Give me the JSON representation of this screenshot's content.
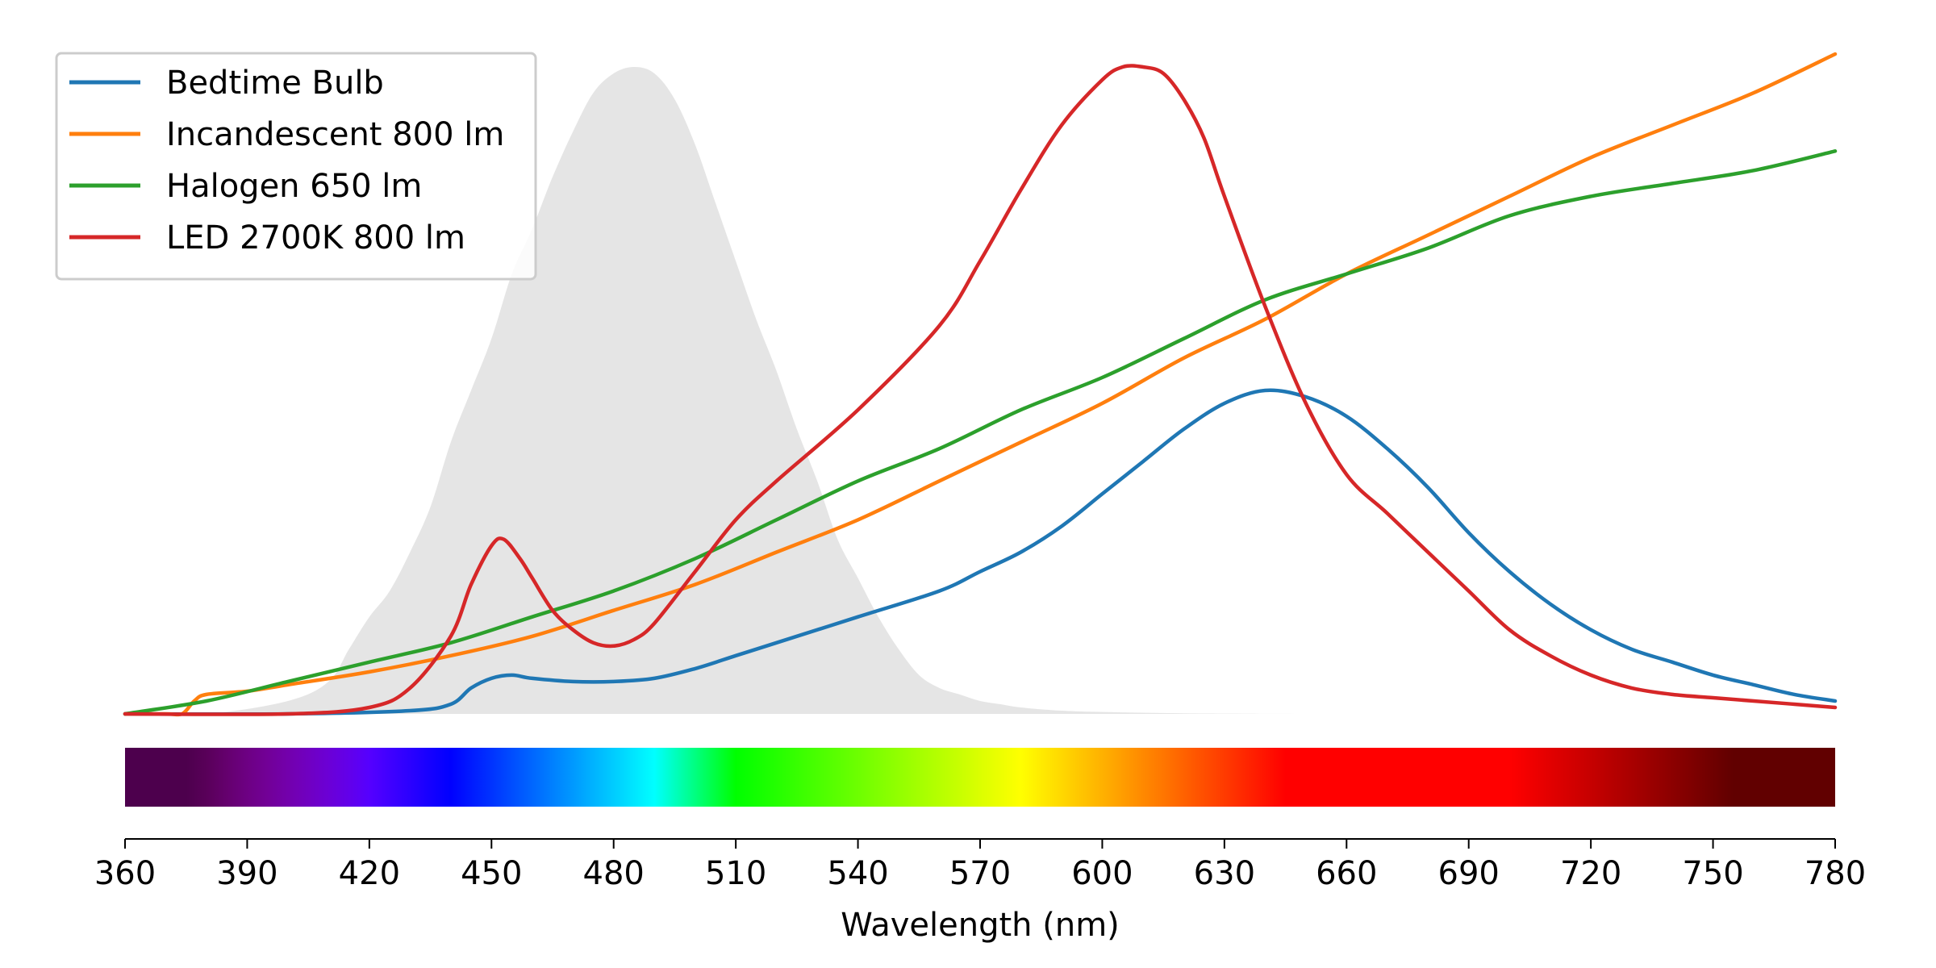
{
  "chart_data": {
    "type": "line",
    "xlabel": "Wavelength (nm)",
    "ylabel": "",
    "xlim": [
      360,
      780
    ],
    "x_ticks": [
      360,
      390,
      420,
      450,
      480,
      510,
      540,
      570,
      600,
      630,
      660,
      690,
      720,
      750,
      780
    ],
    "y_axis_visible": false,
    "grid": false,
    "legend_position": "top-left",
    "background_band": {
      "name": "",
      "color": "#e5e5e5",
      "x": [
        360,
        380,
        400,
        410,
        415,
        420,
        425,
        430,
        435,
        440,
        445,
        450,
        455,
        460,
        465,
        470,
        475,
        480,
        485,
        490,
        495,
        500,
        505,
        510,
        515,
        520,
        525,
        530,
        535,
        540,
        545,
        550,
        555,
        560,
        565,
        570,
        575,
        580,
        590,
        600,
        620,
        650,
        700,
        780
      ],
      "y": [
        0,
        0,
        0.02,
        0.05,
        0.1,
        0.15,
        0.19,
        0.25,
        0.32,
        0.42,
        0.5,
        0.58,
        0.68,
        0.75,
        0.83,
        0.9,
        0.96,
        0.99,
        1.0,
        0.99,
        0.95,
        0.88,
        0.79,
        0.7,
        0.61,
        0.53,
        0.44,
        0.36,
        0.27,
        0.21,
        0.15,
        0.1,
        0.06,
        0.04,
        0.03,
        0.02,
        0.015,
        0.01,
        0.005,
        0.003,
        0.001,
        0,
        0,
        0
      ]
    },
    "spectrum_bar": true,
    "series": [
      {
        "name": "Bedtime Bulb",
        "color": "#1f77b4",
        "x": [
          360,
          400,
          430,
          440,
          445,
          450,
          455,
          460,
          470,
          480,
          490,
          500,
          510,
          520,
          540,
          560,
          570,
          580,
          590,
          600,
          610,
          620,
          630,
          640,
          650,
          660,
          670,
          680,
          690,
          700,
          710,
          720,
          730,
          740,
          750,
          760,
          770,
          780
        ],
        "y": [
          0,
          0,
          0.005,
          0.015,
          0.04,
          0.055,
          0.06,
          0.055,
          0.05,
          0.05,
          0.055,
          0.07,
          0.09,
          0.11,
          0.15,
          0.19,
          0.22,
          0.25,
          0.29,
          0.34,
          0.39,
          0.44,
          0.48,
          0.5,
          0.49,
          0.46,
          0.41,
          0.35,
          0.28,
          0.22,
          0.17,
          0.13,
          0.1,
          0.08,
          0.06,
          0.045,
          0.03,
          0.02
        ]
      },
      {
        "name": "Incandescent 800 lm",
        "color": "#ff7f0e",
        "x": [
          360,
          370,
          374,
          377,
          380,
          390,
          400,
          420,
          440,
          460,
          480,
          500,
          520,
          540,
          560,
          580,
          600,
          620,
          640,
          660,
          680,
          700,
          720,
          740,
          760,
          780
        ],
        "y": [
          0,
          0,
          0,
          0.02,
          0.03,
          0.035,
          0.045,
          0.065,
          0.09,
          0.12,
          0.16,
          0.2,
          0.25,
          0.3,
          0.36,
          0.42,
          0.48,
          0.55,
          0.61,
          0.68,
          0.74,
          0.8,
          0.86,
          0.91,
          0.96,
          1.02
        ]
      },
      {
        "name": "Halogen 650 lm",
        "color": "#2ca02c",
        "x": [
          360,
          380,
          400,
          420,
          440,
          460,
          480,
          500,
          520,
          540,
          560,
          580,
          600,
          620,
          640,
          660,
          680,
          700,
          720,
          740,
          760,
          780
        ],
        "y": [
          0,
          0.02,
          0.05,
          0.08,
          0.11,
          0.15,
          0.19,
          0.24,
          0.3,
          0.36,
          0.41,
          0.47,
          0.52,
          0.58,
          0.64,
          0.68,
          0.72,
          0.77,
          0.8,
          0.82,
          0.84,
          0.87
        ]
      },
      {
        "name": "LED 2700K 800 lm",
        "color": "#d62728",
        "x": [
          360,
          400,
          420,
          430,
          440,
          445,
          450,
          453,
          457,
          460,
          465,
          470,
          475,
          480,
          485,
          490,
          500,
          510,
          520,
          540,
          560,
          570,
          580,
          590,
          600,
          605,
          610,
          615,
          620,
          625,
          630,
          640,
          650,
          660,
          670,
          680,
          690,
          700,
          710,
          720,
          730,
          740,
          750,
          760,
          770,
          780
        ],
        "y": [
          0,
          0,
          0.01,
          0.04,
          0.12,
          0.2,
          0.26,
          0.27,
          0.24,
          0.21,
          0.16,
          0.13,
          0.11,
          0.105,
          0.115,
          0.14,
          0.22,
          0.3,
          0.36,
          0.47,
          0.6,
          0.7,
          0.81,
          0.91,
          0.98,
          1.0,
          1.0,
          0.99,
          0.95,
          0.89,
          0.8,
          0.63,
          0.48,
          0.37,
          0.31,
          0.25,
          0.19,
          0.13,
          0.09,
          0.06,
          0.04,
          0.03,
          0.025,
          0.02,
          0.015,
          0.01
        ]
      }
    ]
  }
}
